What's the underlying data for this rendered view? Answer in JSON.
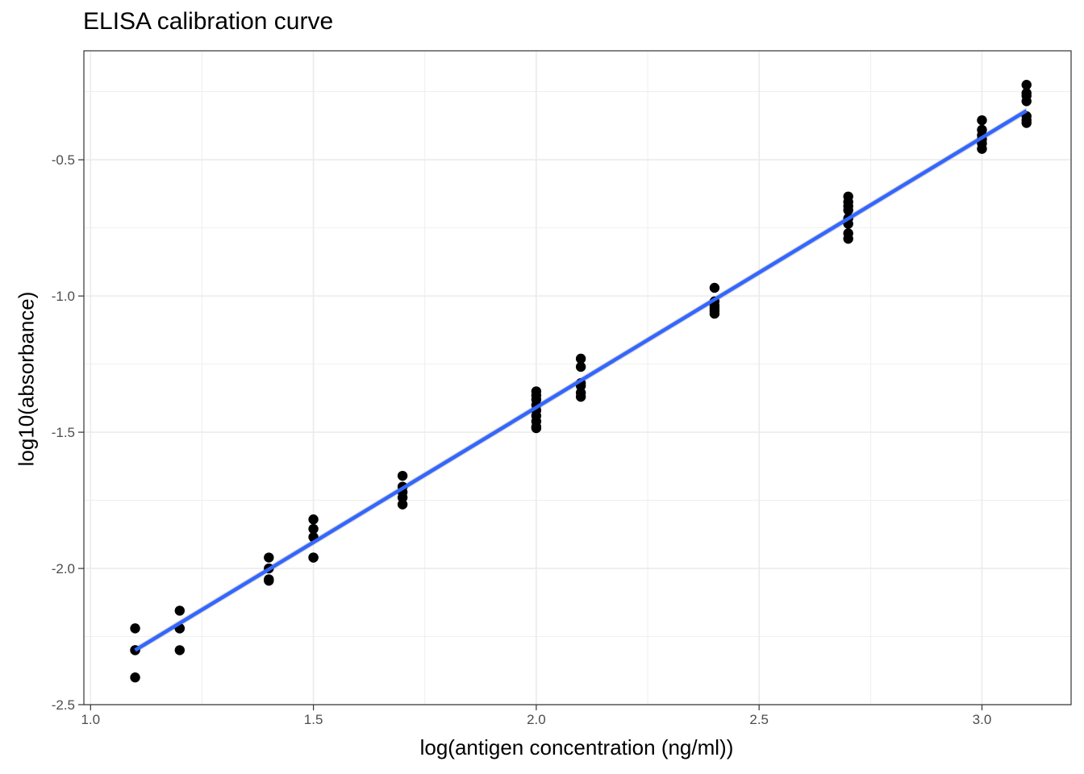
{
  "chart_data": {
    "type": "scatter",
    "title": "ELISA calibration curve",
    "xlabel": "log(antigen concentration (ng/ml))",
    "ylabel": "log10(absorbance)",
    "xlim": [
      0.985,
      3.2
    ],
    "ylim": [
      -2.5,
      -0.1
    ],
    "x_ticks": [
      1.0,
      1.5,
      2.0,
      2.5,
      3.0
    ],
    "x_tick_labels": [
      "1.0",
      "1.5",
      "2.0",
      "2.5",
      "3.0"
    ],
    "y_ticks": [
      -2.5,
      -2.0,
      -1.5,
      -1.0,
      -0.5
    ],
    "y_tick_labels": [
      "-2.5",
      "-2.0",
      "-1.5",
      "-1.0",
      "-0.5"
    ],
    "grid": true,
    "legend": "none",
    "colors": {
      "points": "#000000",
      "fit_line": "#3366ff",
      "confidence_band": "#bbbbbb",
      "grid": "#ebebeb",
      "panel_border": "#333333"
    },
    "series": [
      {
        "type": "points",
        "x": [
          1.1,
          1.1,
          1.1,
          1.1,
          1.2,
          1.2,
          1.2,
          1.2,
          1.4,
          1.4,
          1.4,
          1.4,
          1.5,
          1.5,
          1.5,
          1.5,
          1.5,
          1.7,
          1.7,
          1.7,
          1.7,
          1.7,
          2.0,
          2.0,
          2.0,
          2.0,
          2.0,
          2.0,
          2.0,
          2.0,
          2.0,
          2.1,
          2.1,
          2.1,
          2.1,
          2.1,
          2.1,
          2.4,
          2.4,
          2.4,
          2.4,
          2.4,
          2.4,
          2.7,
          2.7,
          2.7,
          2.7,
          2.7,
          2.7,
          2.7,
          2.7,
          3.0,
          3.0,
          3.0,
          3.0,
          3.0,
          3.0,
          3.1,
          3.1,
          3.1,
          3.1,
          3.1,
          3.1,
          3.1
        ],
        "y": [
          -2.22,
          -2.3,
          -2.3,
          -2.4,
          -2.155,
          -2.22,
          -2.22,
          -2.3,
          -1.96,
          -2.0,
          -2.04,
          -2.045,
          -1.82,
          -1.855,
          -1.885,
          -1.96,
          -1.96,
          -1.66,
          -1.7,
          -1.72,
          -1.74,
          -1.765,
          -1.35,
          -1.365,
          -1.38,
          -1.4,
          -1.42,
          -1.44,
          -1.46,
          -1.48,
          -1.485,
          -1.23,
          -1.26,
          -1.32,
          -1.33,
          -1.355,
          -1.37,
          -0.97,
          -1.02,
          -1.035,
          -1.045,
          -1.055,
          -1.065,
          -0.635,
          -0.655,
          -0.67,
          -0.685,
          -0.715,
          -0.735,
          -0.77,
          -0.79,
          -0.355,
          -0.39,
          -0.41,
          -0.425,
          -0.44,
          -0.46,
          -0.225,
          -0.255,
          -0.265,
          -0.285,
          -0.34,
          -0.355,
          -0.365
        ]
      },
      {
        "type": "linear-fit",
        "x": [
          1.1,
          3.1
        ],
        "y": [
          -2.3,
          -0.32
        ],
        "se_band": [
          0.012,
          0.012
        ]
      }
    ]
  }
}
